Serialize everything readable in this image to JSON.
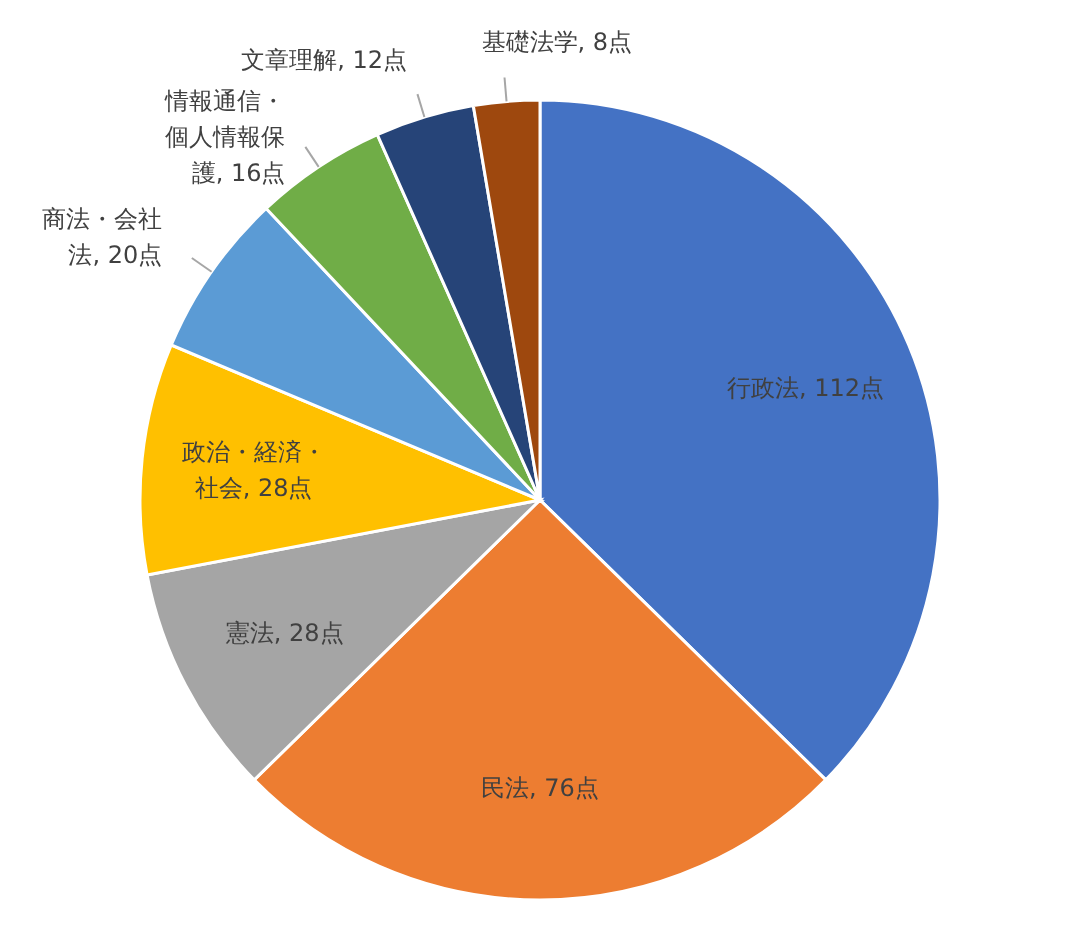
{
  "chart_data": {
    "type": "pie",
    "categories": [
      "行政法",
      "民法",
      "憲法",
      "政治・経済・社会",
      "商法・会社法",
      "情報通信・個人情報保護",
      "文章理解",
      "基礎法学"
    ],
    "values": [
      112,
      76,
      28,
      28,
      20,
      16,
      12,
      8
    ],
    "colors": [
      "#4472c4",
      "#ed7d31",
      "#a5a5a5",
      "#ffc000",
      "#5b9bd5",
      "#70ad47",
      "#264478",
      "#9e480e"
    ],
    "value_labels": [
      "112点",
      "76点",
      "28点",
      "28点",
      "20点",
      "16点",
      "12点",
      "8点"
    ]
  }
}
